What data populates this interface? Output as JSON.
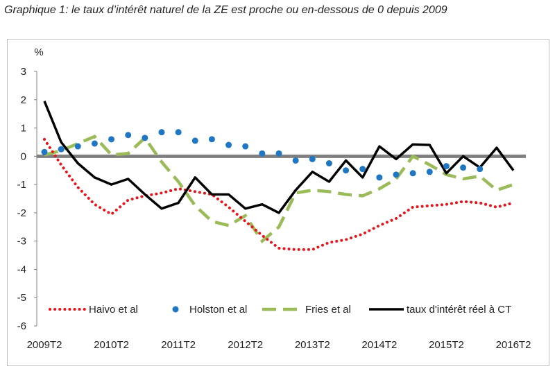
{
  "title": "Graphique 1: le taux d’intérêt naturel de la ZE est proche ou en-dessous de 0 depuis 2009",
  "chart_data": {
    "type": "line",
    "ylabel": "%",
    "ylim": [
      -6,
      3
    ],
    "yticks": [
      "3",
      "2",
      "1",
      "0",
      "-1",
      "-2",
      "-3",
      "-4",
      "-5",
      "-6"
    ],
    "xlabels": [
      "2009T2",
      "2010T2",
      "2011T2",
      "2012T2",
      "2013T2",
      "2014T2",
      "2015T2",
      "2016T2"
    ],
    "colors": {
      "haivo": "#e8141c",
      "holston": "#1f77c4",
      "fries": "#9bbb59",
      "ct": "#000000",
      "zero": "#808080"
    },
    "series": [
      {
        "key": "haivo",
        "name": "Haivo et al",
        "x": [
          0,
          1,
          2,
          3,
          4,
          5,
          6,
          7,
          8,
          9,
          10,
          11,
          12,
          13,
          14,
          15,
          16,
          17,
          18,
          19,
          20,
          21,
          22,
          23,
          24,
          25,
          26,
          27,
          28
        ],
        "values": [
          0.6,
          -0.3,
          -1.1,
          -1.7,
          -2.05,
          -1.55,
          -1.4,
          -1.3,
          -1.15,
          -1.25,
          -1.35,
          -1.8,
          -2.3,
          -2.8,
          -3.25,
          -3.3,
          -3.3,
          -3.05,
          -2.95,
          -2.75,
          -2.45,
          -2.2,
          -1.8,
          -1.75,
          -1.7,
          -1.6,
          -1.65,
          -1.8,
          -1.65
        ]
      },
      {
        "key": "holston",
        "name": "Holston et al",
        "x": [
          0,
          1,
          2,
          3,
          4,
          5,
          6,
          7,
          8,
          9,
          10,
          11,
          12,
          13,
          14,
          15,
          16,
          17,
          18,
          19,
          20,
          21,
          22,
          23,
          24,
          25,
          26
        ],
        "values": [
          0.15,
          0.25,
          0.35,
          0.45,
          0.6,
          0.75,
          0.65,
          0.85,
          0.85,
          0.55,
          0.6,
          0.4,
          0.35,
          0.1,
          0.1,
          -0.15,
          -0.1,
          -0.25,
          -0.5,
          -0.45,
          -0.75,
          -0.65,
          -0.6,
          -0.55,
          -0.35,
          -0.4,
          -0.45
        ]
      },
      {
        "key": "fries",
        "name": "Fries et al",
        "x": [
          0,
          1,
          2,
          3,
          4,
          5,
          6,
          7,
          8,
          9,
          10,
          11,
          12,
          13,
          14,
          15,
          16,
          17,
          18,
          19,
          20,
          21,
          22,
          23,
          24,
          25,
          26,
          27,
          28
        ],
        "values": [
          0.05,
          0.2,
          0.45,
          0.7,
          0.05,
          0.1,
          0.65,
          -0.2,
          -0.9,
          -1.75,
          -2.3,
          -2.45,
          -2.1,
          -3.0,
          -2.5,
          -1.3,
          -1.2,
          -1.25,
          -1.35,
          -1.4,
          -1.15,
          -0.8,
          0.0,
          -0.3,
          -0.65,
          -0.8,
          -0.7,
          -1.2,
          -1.0
        ]
      },
      {
        "key": "ct",
        "name": "taux d'intérêt réel à CT",
        "x": [
          0,
          1,
          2,
          3,
          4,
          5,
          6,
          7,
          8,
          9,
          10,
          11,
          12,
          13,
          14,
          15,
          16,
          17,
          18,
          19,
          20,
          21,
          22,
          23,
          24,
          25,
          26,
          27,
          28
        ],
        "values": [
          1.95,
          0.5,
          -0.25,
          -0.75,
          -1.0,
          -0.8,
          -1.35,
          -1.85,
          -1.65,
          -0.75,
          -1.35,
          -1.35,
          -1.85,
          -1.7,
          -2.0,
          -1.2,
          -0.55,
          -0.9,
          -0.15,
          -0.75,
          0.35,
          -0.1,
          0.42,
          0.4,
          -0.6,
          0.0,
          -0.4,
          0.3,
          -0.5
        ]
      }
    ]
  }
}
